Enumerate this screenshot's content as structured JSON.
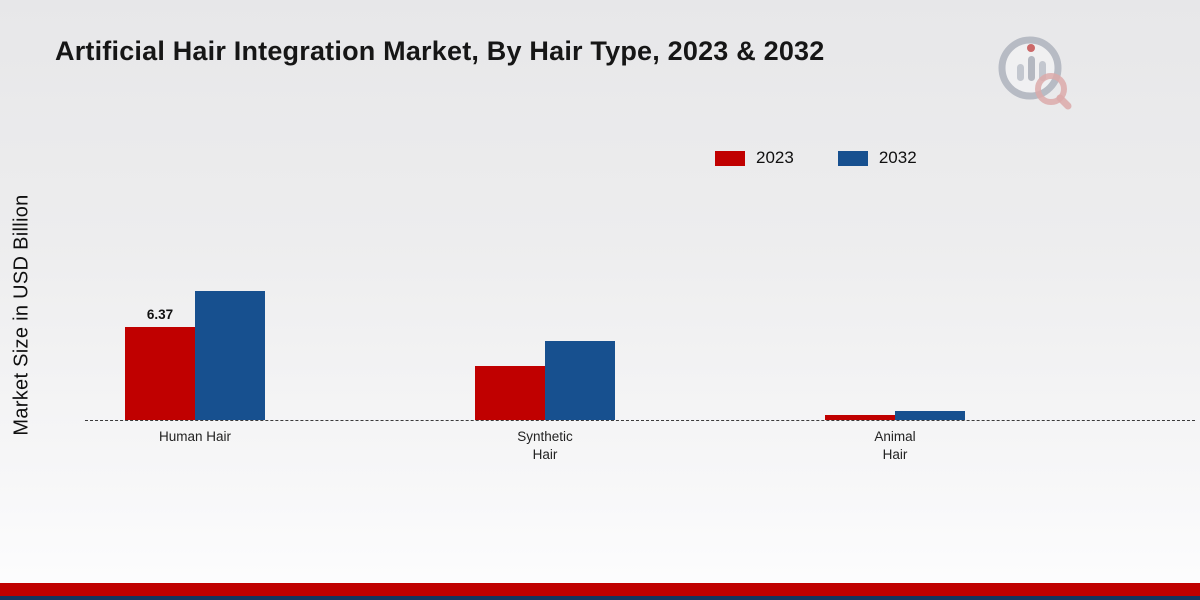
{
  "page": {
    "title": "Artificial Hair Integration Market, By Hair Type, 2023 & 2032",
    "ylabel": "Market Size in USD Billion"
  },
  "legend": [
    {
      "label": "2023",
      "color": "#c00000"
    },
    {
      "label": "2032",
      "color": "#17508f"
    }
  ],
  "chart_data": {
    "type": "bar",
    "title": "Artificial Hair Integration Market, By Hair Type, 2023 & 2032",
    "xlabel": "",
    "ylabel": "Market Size in USD Billion",
    "categories": [
      "Human Hair",
      "Synthetic Hair",
      "Animal Hair"
    ],
    "tick_labels": [
      "Human Hair",
      "Synthetic\nHair",
      "Animal\nHair"
    ],
    "series": [
      {
        "name": "2023",
        "color": "#c00000",
        "values": [
          6.37,
          3.7,
          0.35
        ],
        "labels": [
          "6.37",
          "",
          ""
        ]
      },
      {
        "name": "2032",
        "color": "#17508f",
        "values": [
          8.85,
          5.4,
          0.65
        ],
        "labels": [
          "",
          "",
          ""
        ]
      }
    ],
    "grid": false,
    "baseline": "dashed",
    "legend_position": "top-right"
  },
  "branding": {
    "logo": "market-research-magnifier-chart-logo"
  }
}
